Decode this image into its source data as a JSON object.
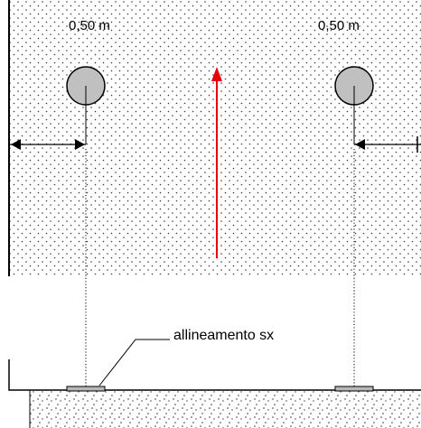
{
  "labels": {
    "left_offset": "0,50 m",
    "right_offset": "0,50 m",
    "alignment_note": "allineamento sx"
  },
  "colors": {
    "direction_arrow": "#e8000b",
    "ball_fill": "#c0c0c0",
    "ball_stroke": "#000000",
    "dot_pattern": "#3a3a3a",
    "line": "#000000",
    "plate_fill": "#b8b8b8"
  },
  "icons": {
    "ball": "circle",
    "direction": "arrow-up",
    "dimension": "double-headed-arrow"
  }
}
